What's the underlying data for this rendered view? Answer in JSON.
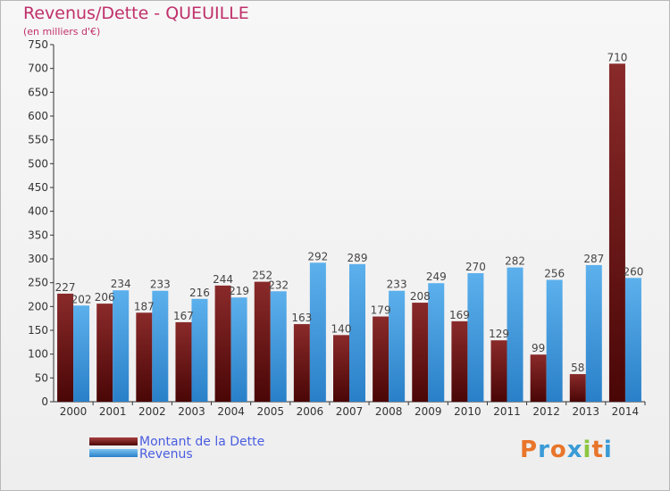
{
  "chart_data": {
    "type": "bar",
    "title": "Revenus/Dette - QUEUILLE",
    "subtitle": "(en milliers d'€)",
    "categories": [
      "2000",
      "2001",
      "2002",
      "2003",
      "2004",
      "2005",
      "2006",
      "2007",
      "2008",
      "2009",
      "2010",
      "2011",
      "2012",
      "2013",
      "2014"
    ],
    "series": [
      {
        "name": "Montant de la Dette",
        "color": "#7a1a1a",
        "values": [
          227,
          206,
          187,
          167,
          244,
          252,
          163,
          140,
          179,
          208,
          169,
          129,
          99,
          58,
          710
        ]
      },
      {
        "name": "Revenus",
        "color": "#3a95dd",
        "values": [
          202,
          234,
          233,
          216,
          219,
          232,
          292,
          289,
          233,
          249,
          270,
          282,
          256,
          287,
          260
        ]
      }
    ],
    "ylim": [
      0,
      750
    ],
    "yticks": [
      0,
      50,
      100,
      150,
      200,
      250,
      300,
      350,
      400,
      450,
      500,
      550,
      600,
      650,
      700,
      750
    ],
    "grid": false,
    "legend_position": "bottom-left"
  },
  "logo": {
    "text": "Proxiti",
    "letters": [
      "P",
      "r",
      "o",
      "x",
      "i",
      "t",
      "i"
    ],
    "colors": [
      "#e8752a",
      "#3a9bd6",
      "#e8752a",
      "#3a9bd6",
      "#8cc63f",
      "#e8752a",
      "#3a9bd6"
    ]
  }
}
